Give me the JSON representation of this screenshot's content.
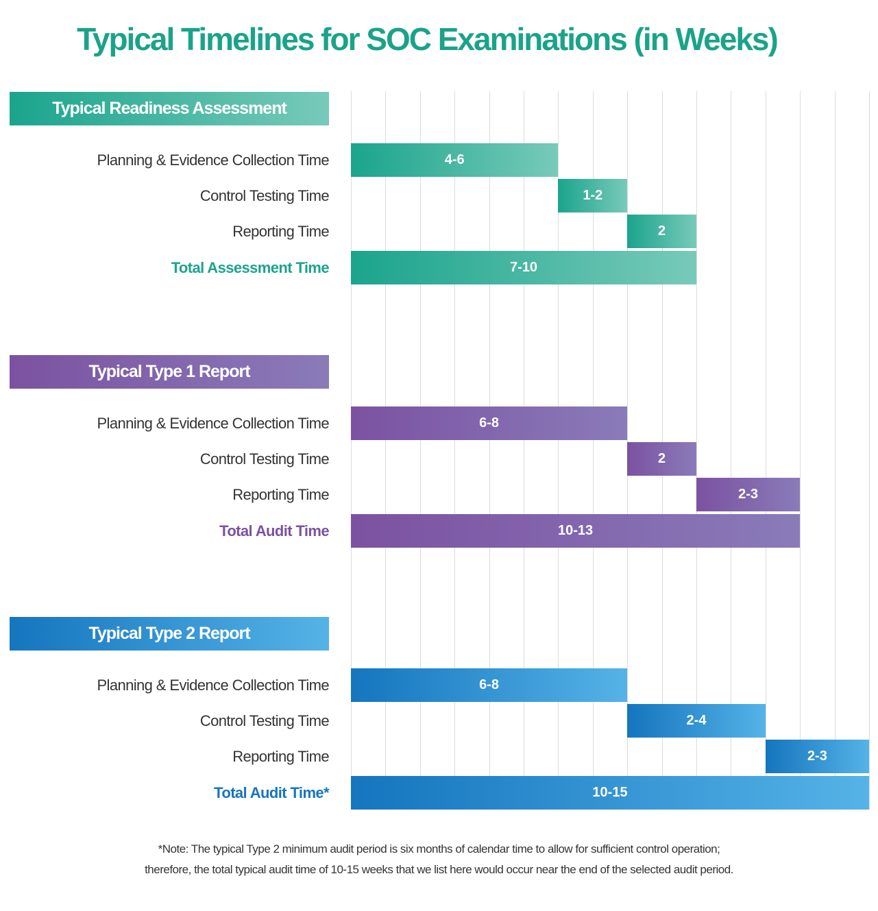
{
  "chart_data": {
    "type": "bar",
    "title": "Typical Timelines for SOC Examinations (in Weeks)",
    "xlim": [
      0,
      15
    ],
    "grid": true,
    "groups": [
      {
        "name": "Typical Readiness Assessment",
        "colors": [
          "#1ba48c",
          "#78cab9"
        ],
        "rows": [
          {
            "label": "Planning & Evidence Collection Time",
            "start": 0,
            "end": 6,
            "value_label": "4-6",
            "total": false
          },
          {
            "label": "Control Testing Time",
            "start": 6,
            "end": 8,
            "value_label": "1-2",
            "total": false
          },
          {
            "label": "Reporting Time",
            "start": 8,
            "end": 10,
            "value_label": "2",
            "total": false
          },
          {
            "label": "Total Assessment Time",
            "start": 0,
            "end": 10,
            "value_label": "7-10",
            "total": true
          }
        ]
      },
      {
        "name": "Typical Type 1 Report",
        "colors": [
          "#7b52a1",
          "#8a7bb9"
        ],
        "rows": [
          {
            "label": "Planning & Evidence Collection Time",
            "start": 0,
            "end": 8,
            "value_label": "6-8",
            "total": false
          },
          {
            "label": "Control Testing Time",
            "start": 8,
            "end": 10,
            "value_label": "2",
            "total": false
          },
          {
            "label": "Reporting Time",
            "start": 10,
            "end": 13,
            "value_label": "2-3",
            "total": false
          },
          {
            "label": "Total Audit Time",
            "start": 0,
            "end": 13,
            "value_label": "10-13",
            "total": true
          }
        ]
      },
      {
        "name": "Typical Type 2 Report",
        "colors": [
          "#1575be",
          "#55b3e7"
        ],
        "rows": [
          {
            "label": "Planning & Evidence Collection Time",
            "start": 0,
            "end": 8,
            "value_label": "6-8",
            "total": false
          },
          {
            "label": "Control Testing Time",
            "start": 8,
            "end": 12,
            "value_label": "2-4",
            "total": false
          },
          {
            "label": "Reporting Time",
            "start": 12,
            "end": 15,
            "value_label": "2-3",
            "total": false
          },
          {
            "label": "Total Audit Time*",
            "start": 0,
            "end": 15,
            "value_label": "10-15",
            "total": true
          }
        ]
      }
    ],
    "note_lines": [
      "*Note: The typical Type 2 minimum audit period is six months of calendar time to allow for sufficient control operation;",
      "therefore, the total typical audit time of 10-15 weeks that we list here would occur near the end of the selected audit period."
    ]
  }
}
